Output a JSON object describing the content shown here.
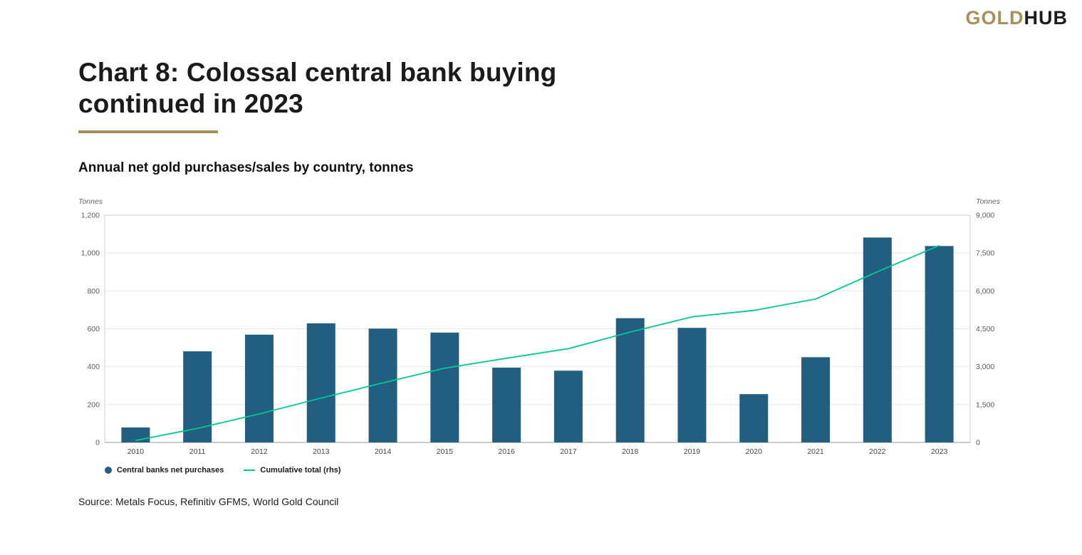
{
  "brand": {
    "gold": "GOLD",
    "hub": "HUB"
  },
  "title_line1": "Chart 8: Colossal central bank buying",
  "title_line2": "continued in 2023",
  "subtitle": "Annual net gold purchases/sales by country, tonnes",
  "source": "Source: Metals Focus, Refinitiv GFMS, World Gold Council",
  "legend": [
    {
      "label": "Central banks net purchases",
      "marker": "circle"
    },
    {
      "label": "Cumulative total (rhs)",
      "marker": "line"
    }
  ],
  "chart_data": {
    "type": "bar",
    "title": "Chart 8: Colossal central bank buying continued in 2023",
    "subtitle": "Annual net gold purchases/sales by country, tonnes",
    "categories": [
      "2010",
      "2011",
      "2012",
      "2013",
      "2014",
      "2015",
      "2016",
      "2017",
      "2018",
      "2019",
      "2020",
      "2021",
      "2022",
      "2023"
    ],
    "series": [
      {
        "name": "Central banks net purchases",
        "type": "bar",
        "axis": "left",
        "values": [
          79,
          481,
          569,
          629,
          601,
          580,
          395,
          379,
          656,
          605,
          255,
          450,
          1082,
          1037
        ]
      },
      {
        "name": "Cumulative total (rhs)",
        "type": "line",
        "axis": "right",
        "values": [
          79,
          560,
          1129,
          1758,
          2359,
          2939,
          3334,
          3713,
          4369,
          4974,
          5229,
          5679,
          6761,
          7798
        ]
      }
    ],
    "left_axis": {
      "label": "Tonnes",
      "min": 0,
      "max": 1200,
      "step": 200,
      "ticks": [
        "0",
        "200",
        "400",
        "600",
        "800",
        "1,000",
        "1,200"
      ]
    },
    "right_axis": {
      "label": "Tonnes",
      "min": 0,
      "max": 9000,
      "step": 1500,
      "ticks": [
        "0",
        "1,500",
        "3,000",
        "4,500",
        "6,000",
        "7,500",
        "9,000"
      ]
    },
    "grid": true,
    "legend_position": "bottom-left",
    "colors": {
      "bar": "#215e80",
      "line": "#00c893",
      "grid": "#e4e4e4",
      "border": "#cfcfcf",
      "axis": "#9a9a9a"
    }
  }
}
